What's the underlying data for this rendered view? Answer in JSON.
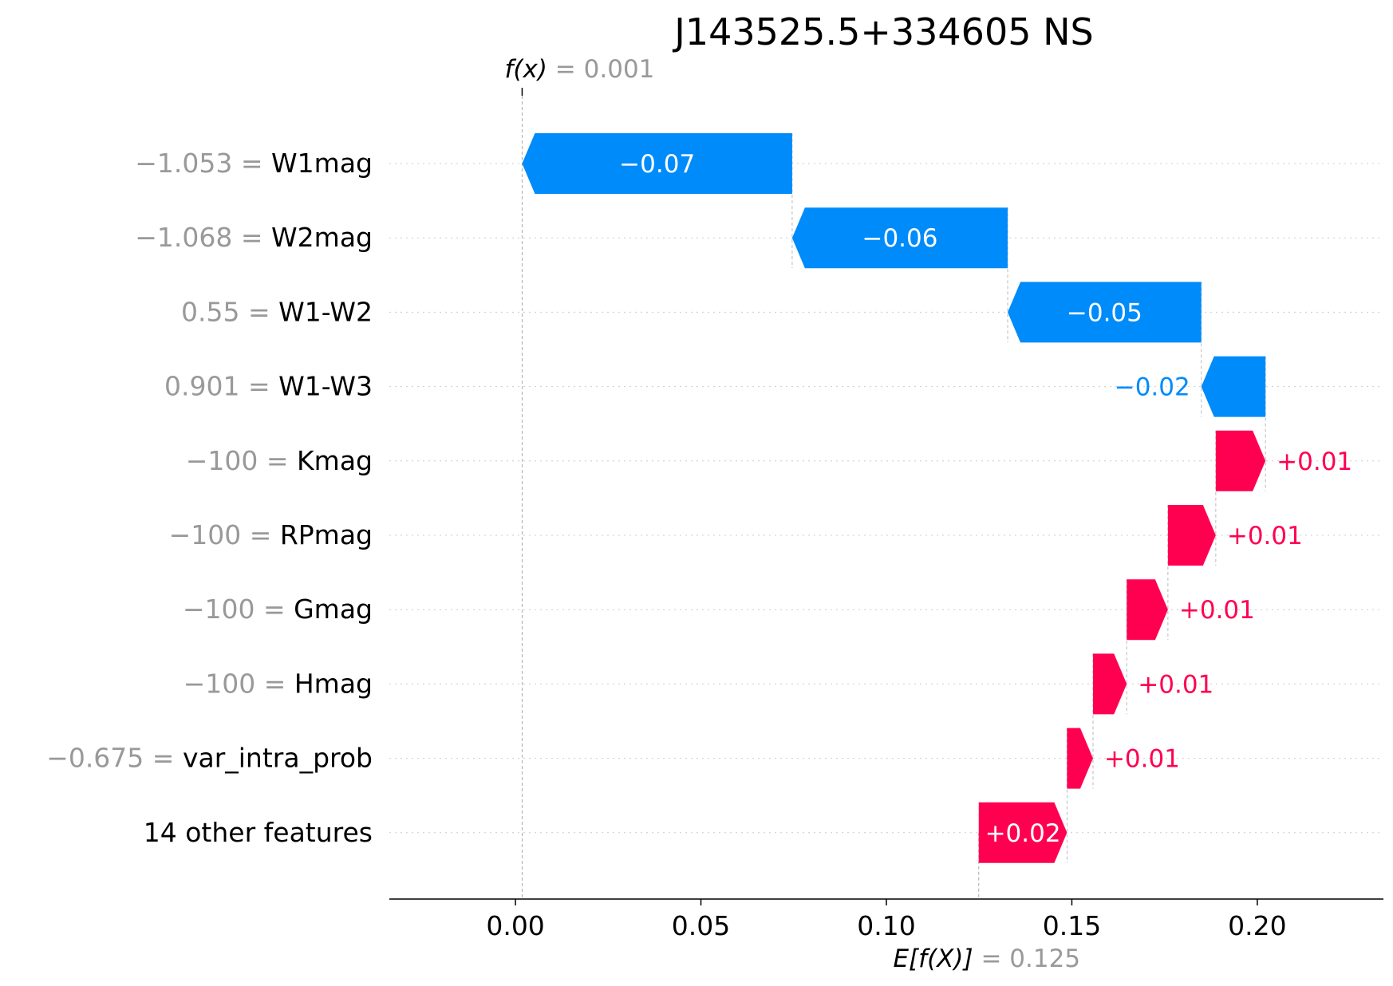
{
  "chart_data": {
    "type": "waterfall",
    "title": "J143525.5+334605 NS",
    "fx_label": "f(x)",
    "fx_value": "0.001",
    "ex_label": "E[f(X)]",
    "ex_value": "0.125",
    "base_value": 0.1249,
    "xlim": [
      -0.034,
      0.234
    ],
    "xticks": [
      {
        "value": 0.0,
        "label": "0.00"
      },
      {
        "value": 0.05,
        "label": "0.05"
      },
      {
        "value": 0.1,
        "label": "0.10"
      },
      {
        "value": 0.15,
        "label": "0.15"
      },
      {
        "value": 0.2,
        "label": "0.20"
      }
    ],
    "features": [
      {
        "value": "−1.053",
        "name": "W1mag",
        "shap": -0.0728,
        "label": "−0.07"
      },
      {
        "value": "−1.068",
        "name": "W2mag",
        "shap": -0.0581,
        "label": "−0.06"
      },
      {
        "value": "0.55",
        "name": "W1-W2",
        "shap": -0.0522,
        "label": "−0.05"
      },
      {
        "value": "0.901",
        "name": "W1-W3",
        "shap": -0.0173,
        "label": "−0.02"
      },
      {
        "value": "−100",
        "name": "Kmag",
        "shap": 0.0134,
        "label": "+0.01"
      },
      {
        "value": "−100",
        "name": "RPmag",
        "shap": 0.0129,
        "label": "+0.01"
      },
      {
        "value": "−100",
        "name": "Gmag",
        "shap": 0.0111,
        "label": "+0.01"
      },
      {
        "value": "−100",
        "name": "Hmag",
        "shap": 0.0091,
        "label": "+0.01"
      },
      {
        "value": "−0.675",
        "name": "var_intra_prob",
        "shap": 0.007,
        "label": "+0.01"
      },
      {
        "value": "",
        "name": "14 other features",
        "shap": 0.0238,
        "label": "+0.02"
      }
    ],
    "colors": {
      "negative": "#008bfb",
      "positive": "#ff0051",
      "value_text": "#999999",
      "name_text": "#000000"
    }
  }
}
